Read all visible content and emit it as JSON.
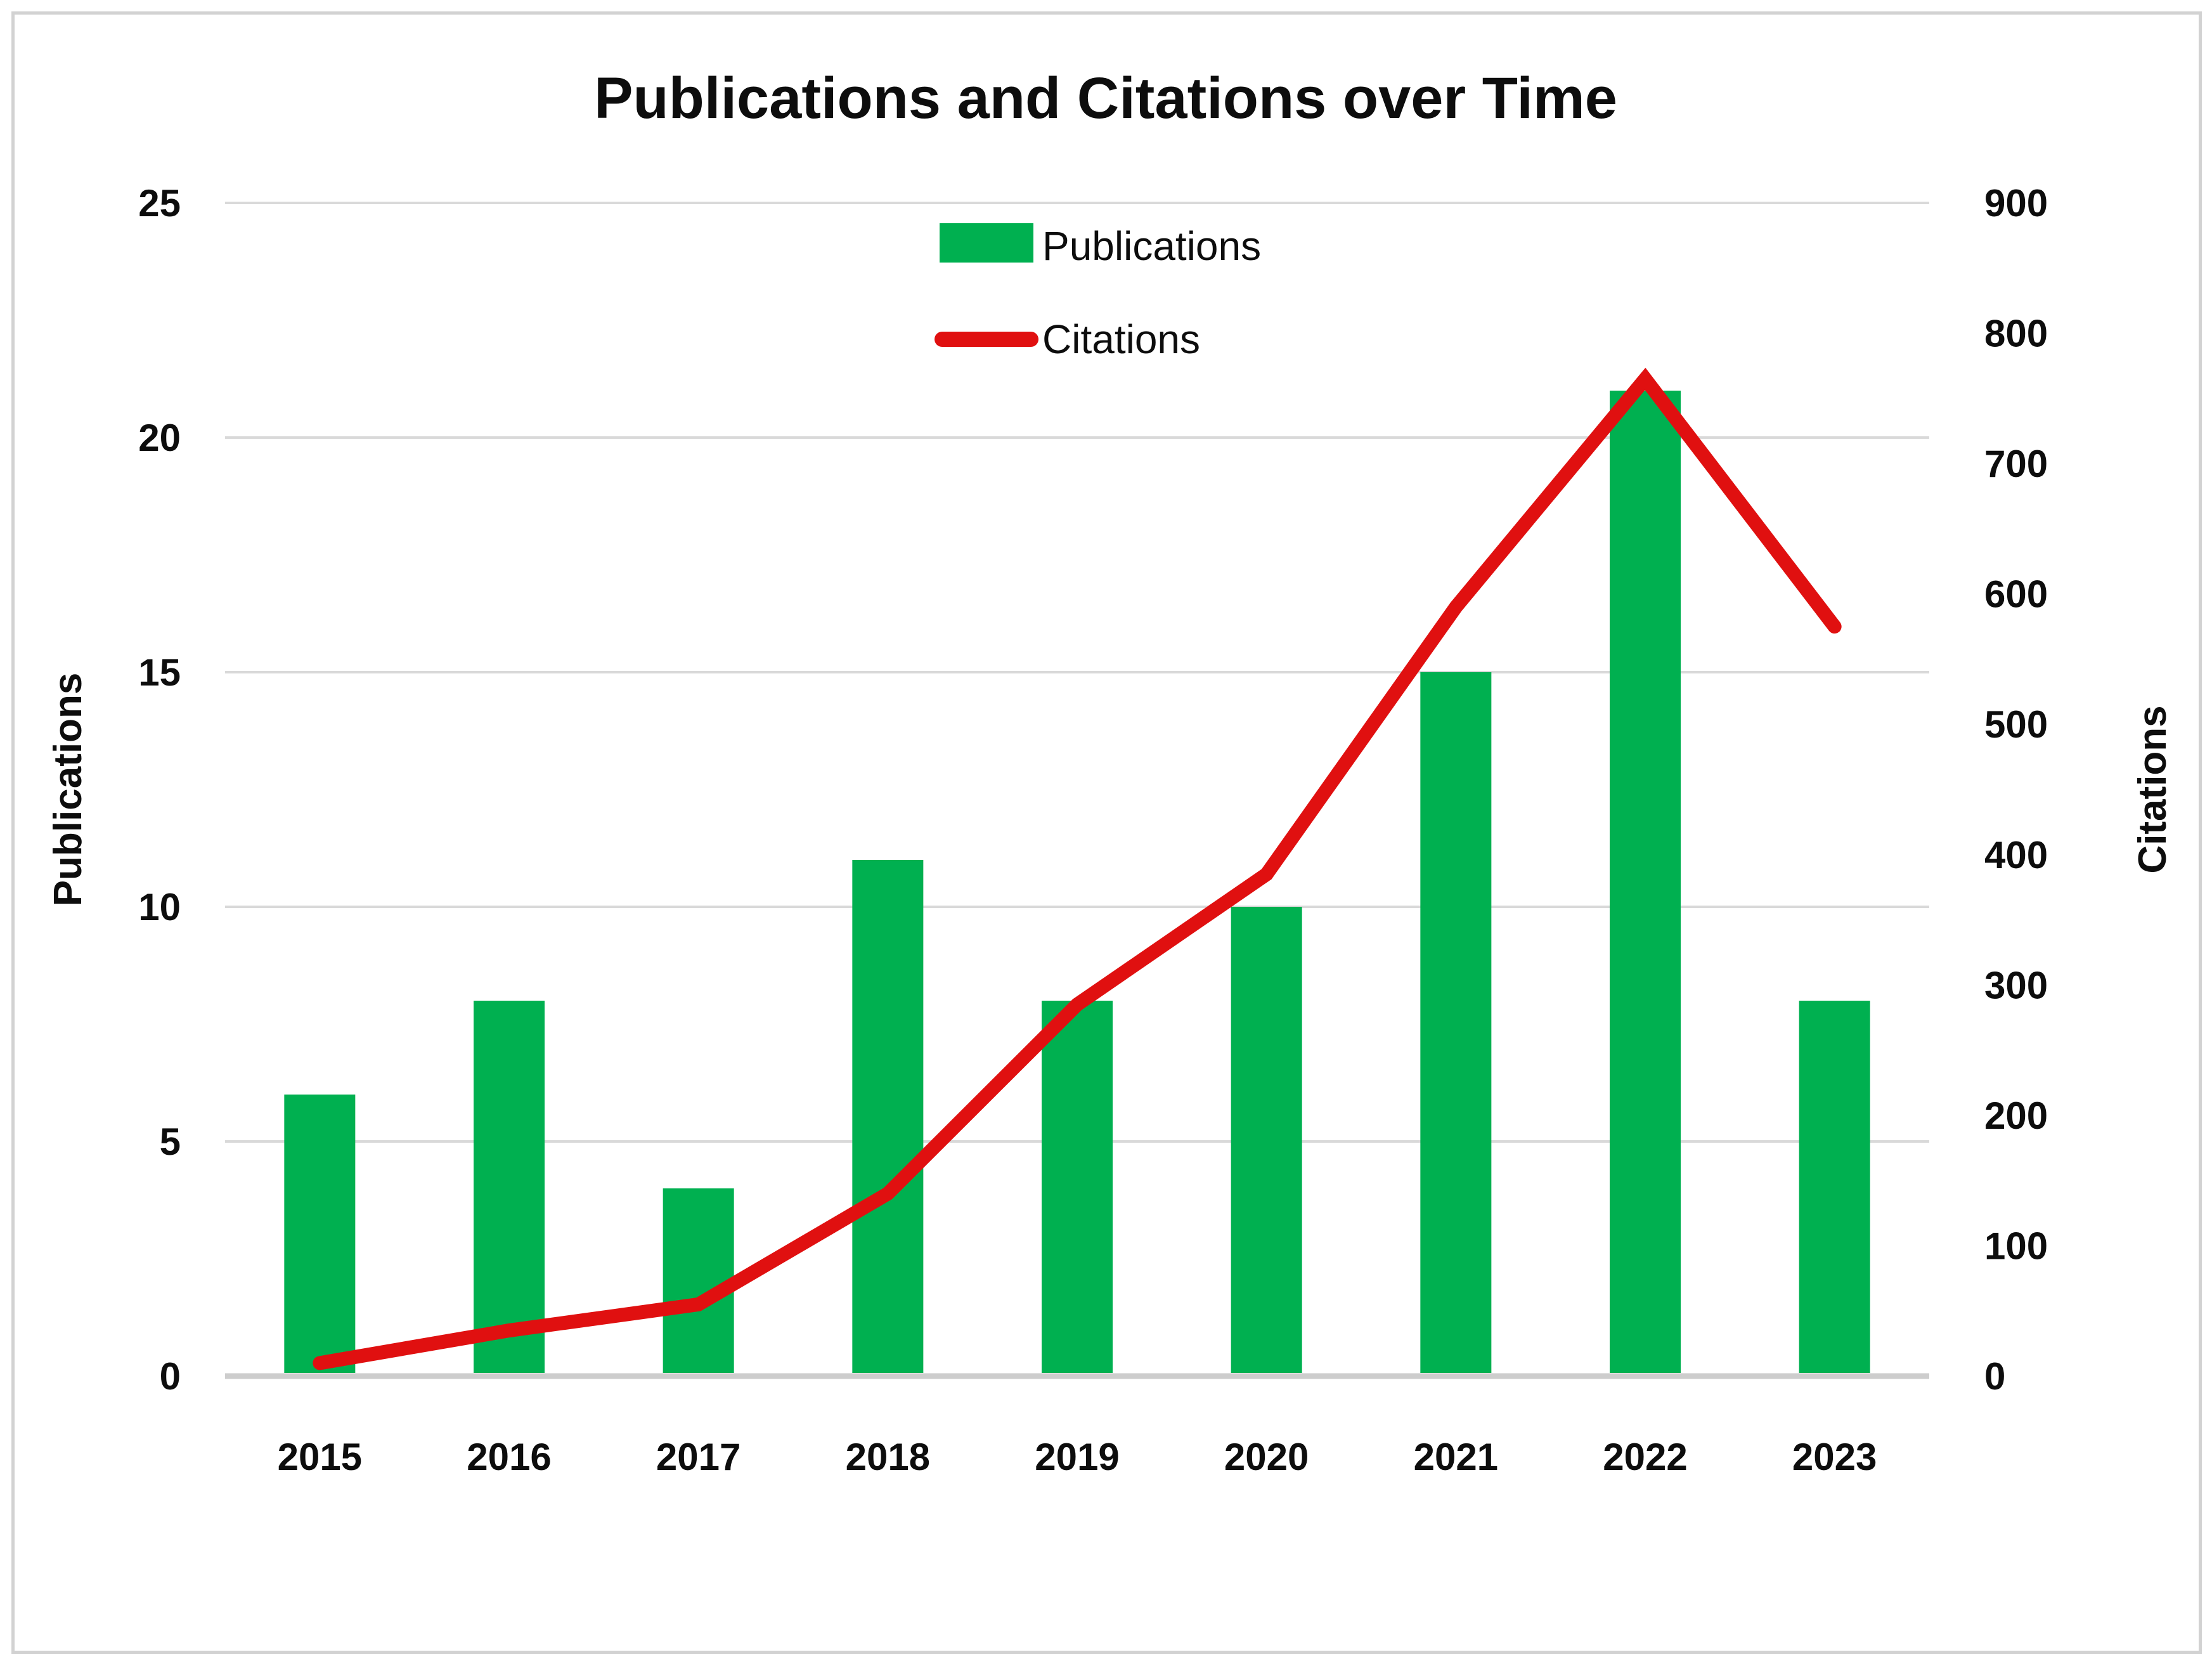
{
  "chart_data": {
    "type": "combo-bar-line",
    "title": "Publications and Citations over Time",
    "categories": [
      "2015",
      "2016",
      "2017",
      "2018",
      "2019",
      "2020",
      "2021",
      "2022",
      "2023"
    ],
    "series": [
      {
        "name": "Publications",
        "chart_type": "bar",
        "axis": "left",
        "color": "#00b050",
        "values": [
          6,
          8,
          4,
          11,
          8,
          10,
          15,
          21,
          8
        ]
      },
      {
        "name": "Citations",
        "chart_type": "line",
        "axis": "right",
        "color": "#e01010",
        "values": [
          10,
          35,
          55,
          140,
          285,
          385,
          590,
          765,
          575
        ]
      }
    ],
    "left_axis": {
      "title": "Publications",
      "min": 0,
      "max": 25,
      "step": 5,
      "ticks": [
        "0",
        "5",
        "10",
        "15",
        "20",
        "25"
      ]
    },
    "right_axis": {
      "title": "Citations",
      "min": 0,
      "max": 900,
      "step": 100,
      "ticks": [
        "0",
        "100",
        "200",
        "300",
        "400",
        "500",
        "600",
        "700",
        "800",
        "900"
      ]
    },
    "legend": {
      "position": "top-center",
      "entries": [
        "Publications",
        "Citations"
      ]
    },
    "grid": true,
    "styles": {
      "grid_color": "#d9d9d9",
      "axis_line_color": "#cdcdcd",
      "frame_color": "#d2d2d2",
      "text_color": "#0d0d0d"
    }
  }
}
